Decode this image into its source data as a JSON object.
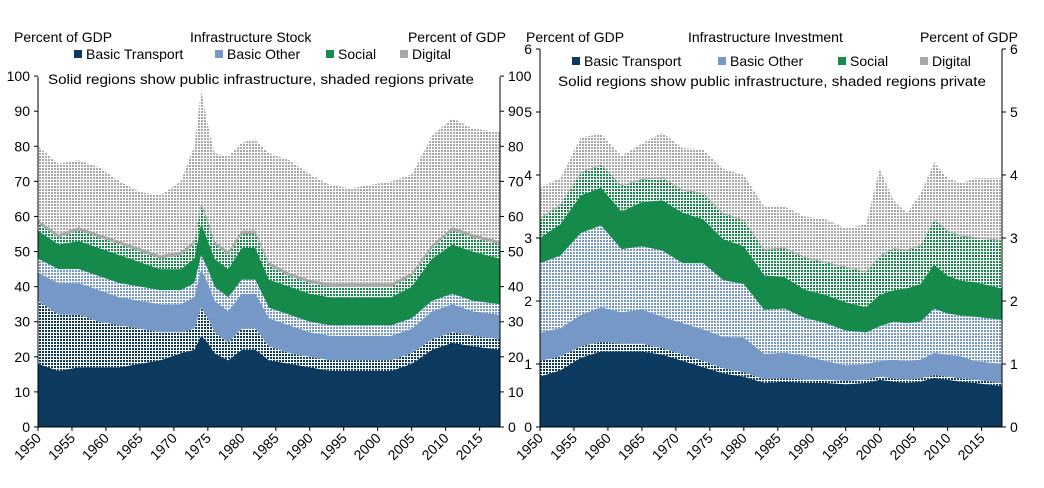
{
  "colors": {
    "basic_transport": "#0b3a5e",
    "basic_other": "#7698c7",
    "social": "#158a4a",
    "digital": "#a8a8a8"
  },
  "chart_data": [
    {
      "type": "area",
      "title": "Infrastructure  Stock",
      "ylabel_left": "Percent of GDP",
      "ylabel_right": "Percent of GDP",
      "note": "Solid regions show public infrastructure,  shaded regions private",
      "legend": [
        "Basic Transport",
        "Basic Other",
        "Social",
        "Digital"
      ],
      "ylim": [
        0,
        110
      ],
      "yticks": [
        0,
        10,
        20,
        30,
        40,
        50,
        60,
        70,
        80,
        90,
        100
      ],
      "xlim": [
        1950,
        2018
      ],
      "xticks": [
        1950,
        1955,
        1960,
        1965,
        1970,
        1975,
        1980,
        1985,
        1990,
        1995,
        2000,
        2005,
        2010,
        2015
      ],
      "x": [
        1950,
        1953,
        1956,
        1959,
        1962,
        1965,
        1968,
        1971,
        1973,
        1974,
        1975,
        1976,
        1978,
        1980,
        1982,
        1984,
        1987,
        1990,
        1993,
        1996,
        1999,
        2002,
        2005,
        2008,
        2011,
        2014,
        2018
      ],
      "series": [
        {
          "name": "Basic Transport",
          "kind": "public",
          "values": [
            18,
            16,
            17,
            17,
            17,
            18,
            19,
            21,
            22,
            26,
            24,
            21,
            19,
            22,
            22,
            19,
            18,
            17,
            16,
            16,
            16,
            16,
            18,
            22,
            24,
            23,
            22
          ]
        },
        {
          "name": "Basic Transport",
          "kind": "private",
          "values": [
            18,
            16,
            15,
            13,
            12,
            10,
            8,
            6,
            6,
            8,
            7,
            6,
            5,
            6,
            6,
            4,
            3,
            3,
            3,
            3,
            3,
            3,
            3,
            3,
            3,
            3,
            3
          ]
        },
        {
          "name": "Basic Other",
          "kind": "public",
          "values": [
            8,
            9,
            9,
            9,
            8,
            8,
            8,
            8,
            9,
            11,
            10,
            9,
            9,
            10,
            10,
            8,
            8,
            7,
            7,
            7,
            7,
            7,
            7,
            8,
            8,
            7,
            7
          ]
        },
        {
          "name": "Basic Other",
          "kind": "private",
          "values": [
            4,
            4,
            4,
            4,
            4,
            4,
            4,
            4,
            4,
            4,
            4,
            4,
            4,
            4,
            4,
            3,
            3,
            3,
            3,
            3,
            3,
            3,
            3,
            3,
            3,
            3,
            3
          ]
        },
        {
          "name": "Social",
          "kind": "public",
          "values": [
            8,
            7,
            8,
            8,
            8,
            7,
            6,
            6,
            7,
            9,
            8,
            8,
            8,
            9,
            9,
            8,
            8,
            8,
            8,
            8,
            8,
            8,
            9,
            12,
            14,
            14,
            13
          ]
        },
        {
          "name": "Social",
          "kind": "private",
          "values": [
            2,
            2,
            3,
            3,
            3,
            3,
            3,
            4,
            4,
            5,
            5,
            4,
            4,
            4,
            4,
            4,
            3,
            3,
            3,
            3,
            3,
            3,
            3,
            3,
            4,
            4,
            4
          ]
        },
        {
          "name": "Digital",
          "kind": "public",
          "values": [
            1,
            1,
            1,
            1,
            1,
            1,
            1,
            1,
            1,
            1,
            1,
            1,
            1,
            1,
            1,
            1,
            1,
            1,
            1,
            1,
            1,
            1,
            1,
            1,
            1,
            1,
            1
          ]
        },
        {
          "name": "Digital",
          "kind": "private",
          "values": [
            21,
            20,
            19,
            19,
            17,
            16,
            17,
            20,
            27,
            32,
            27,
            25,
            27,
            25,
            26,
            31,
            32,
            30,
            28,
            27,
            28,
            29,
            28,
            31,
            31,
            30,
            31
          ]
        }
      ]
    },
    {
      "type": "area",
      "title": "Infrastructure  Investment",
      "ylabel_left": "Percent of GDP",
      "ylabel_right": "Percent of GDP",
      "note": "Solid regions show public infrastructure,  shaded regions private",
      "legend": [
        "Basic Transport",
        "Basic Other",
        "Social",
        "Digital"
      ],
      "ylim": [
        0,
        6
      ],
      "yticks": [
        0,
        1,
        2,
        3,
        4,
        5,
        6
      ],
      "xlim": [
        1950,
        2018
      ],
      "xticks": [
        1950,
        1955,
        1960,
        1965,
        1970,
        1975,
        1980,
        1985,
        1990,
        1995,
        2000,
        2005,
        2010,
        2015
      ],
      "x": [
        1950,
        1953,
        1956,
        1959,
        1962,
        1965,
        1968,
        1971,
        1974,
        1977,
        1980,
        1983,
        1986,
        1989,
        1992,
        1995,
        1998,
        2000,
        2002,
        2004,
        2006,
        2008,
        2010,
        2012,
        2014,
        2018
      ],
      "series": [
        {
          "name": "Basic Transport",
          "kind": "public",
          "values": [
            0.8,
            0.9,
            1.1,
            1.2,
            1.2,
            1.2,
            1.15,
            1.05,
            0.95,
            0.85,
            0.8,
            0.7,
            0.72,
            0.7,
            0.7,
            0.68,
            0.7,
            0.75,
            0.72,
            0.7,
            0.72,
            0.78,
            0.75,
            0.72,
            0.7,
            0.65
          ]
        },
        {
          "name": "Basic Transport",
          "kind": "private",
          "values": [
            0.25,
            0.22,
            0.18,
            0.15,
            0.12,
            0.12,
            0.1,
            0.1,
            0.1,
            0.08,
            0.07,
            0.06,
            0.06,
            0.05,
            0.05,
            0.05,
            0.05,
            0.05,
            0.05,
            0.05,
            0.05,
            0.05,
            0.05,
            0.05,
            0.05,
            0.05
          ]
        },
        {
          "name": "Basic Other",
          "kind": "public",
          "values": [
            0.45,
            0.45,
            0.5,
            0.55,
            0.5,
            0.55,
            0.5,
            0.5,
            0.5,
            0.5,
            0.55,
            0.4,
            0.4,
            0.38,
            0.3,
            0.25,
            0.25,
            0.25,
            0.3,
            0.3,
            0.3,
            0.35,
            0.35,
            0.35,
            0.3,
            0.3
          ]
        },
        {
          "name": "Basic Other",
          "kind": "private",
          "values": [
            1.1,
            1.15,
            1.3,
            1.3,
            1.0,
            1.0,
            1.05,
            0.95,
            1.05,
            0.9,
            0.85,
            0.7,
            0.7,
            0.6,
            0.6,
            0.55,
            0.5,
            0.55,
            0.6,
            0.6,
            0.6,
            0.7,
            0.65,
            0.65,
            0.7,
            0.7
          ]
        },
        {
          "name": "Social",
          "kind": "public",
          "values": [
            0.4,
            0.5,
            0.6,
            0.6,
            0.6,
            0.7,
            0.8,
            0.8,
            0.7,
            0.65,
            0.6,
            0.55,
            0.5,
            0.45,
            0.45,
            0.45,
            0.4,
            0.5,
            0.5,
            0.55,
            0.6,
            0.7,
            0.6,
            0.55,
            0.55,
            0.5
          ]
        },
        {
          "name": "Social",
          "kind": "private",
          "values": [
            0.3,
            0.3,
            0.35,
            0.35,
            0.4,
            0.35,
            0.35,
            0.35,
            0.4,
            0.4,
            0.4,
            0.4,
            0.45,
            0.5,
            0.5,
            0.55,
            0.55,
            0.6,
            0.65,
            0.6,
            0.6,
            0.7,
            0.7,
            0.7,
            0.7,
            0.75
          ]
        },
        {
          "name": "Digital",
          "kind": "public",
          "values": [
            0.02,
            0.02,
            0.02,
            0.02,
            0.02,
            0.02,
            0.02,
            0.02,
            0.02,
            0.02,
            0.02,
            0.02,
            0.02,
            0.02,
            0.02,
            0.02,
            0.02,
            0.02,
            0.02,
            0.02,
            0.02,
            0.02,
            0.02,
            0.02,
            0.02,
            0.02
          ]
        },
        {
          "name": "Digital",
          "kind": "private",
          "values": [
            0.48,
            0.41,
            0.55,
            0.48,
            0.46,
            0.56,
            0.7,
            0.66,
            0.68,
            0.7,
            0.71,
            0.67,
            0.65,
            0.64,
            0.68,
            0.6,
            0.75,
            1.38,
            0.76,
            0.58,
            0.81,
            0.9,
            0.83,
            0.83,
            0.93,
            0.98
          ]
        }
      ]
    }
  ]
}
